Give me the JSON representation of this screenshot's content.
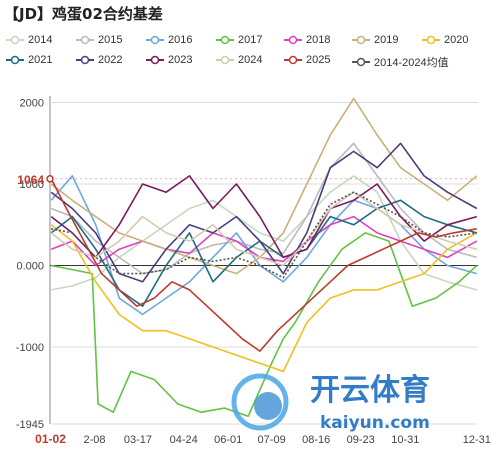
{
  "title": "【JD】鸡蛋02合约基差",
  "chart_data": {
    "type": "line",
    "title": "【JD】鸡蛋02合约基差",
    "ylim": [
      -1945,
      2080
    ],
    "y_ticks": [
      2000,
      1000,
      0,
      -1000,
      -1945
    ],
    "y_tick_labels": [
      "2000",
      "1000",
      "0.000",
      "-1000",
      "-1945"
    ],
    "current_marker": {
      "value": 1064,
      "label": "1064"
    },
    "x_tick_labels": [
      "01-02",
      "2-08",
      "03-17",
      "04-24",
      "06-01",
      "07-09",
      "08-16",
      "09-23",
      "10-31",
      "12-31"
    ],
    "x_ticks_day": [
      2,
      39,
      76,
      115,
      153,
      190,
      228,
      266,
      304,
      365
    ],
    "grid": "horizontal",
    "legend_position": "top",
    "series": [
      {
        "name": "2014",
        "color": "#c6d8c0",
        "dash": false,
        "x": [
          2,
          20,
          40,
          60,
          80,
          100,
          120,
          140,
          160,
          180,
          200,
          220,
          240,
          260,
          280,
          300,
          320,
          340,
          365
        ],
        "y": [
          -300,
          -250,
          -150,
          100,
          300,
          500,
          700,
          800,
          600,
          400,
          300,
          600,
          900,
          1100,
          900,
          300,
          -100,
          -200,
          -300
        ]
      },
      {
        "name": "2015",
        "color": "#bbbbbb",
        "dash": false,
        "x": [
          2,
          20,
          40,
          60,
          80,
          100,
          120,
          140,
          160,
          180,
          200,
          220,
          240,
          260,
          280,
          300,
          320,
          340,
          365
        ],
        "y": [
          700,
          600,
          300,
          100,
          -100,
          -50,
          150,
          250,
          300,
          200,
          150,
          600,
          1200,
          1500,
          1100,
          700,
          400,
          200,
          100
        ]
      },
      {
        "name": "2016",
        "color": "#6fa8dc",
        "dash": false,
        "x": [
          2,
          20,
          40,
          60,
          80,
          100,
          120,
          140,
          160,
          180,
          200,
          220,
          240,
          260,
          280,
          300,
          320,
          340,
          365
        ],
        "y": [
          800,
          1100,
          500,
          -400,
          -600,
          -400,
          -200,
          100,
          400,
          0,
          -200,
          100,
          500,
          800,
          700,
          500,
          200,
          0,
          -100
        ]
      },
      {
        "name": "2017",
        "color": "#62c343",
        "dash": false,
        "x": [
          2,
          20,
          37,
          42,
          55,
          70,
          90,
          110,
          130,
          150,
          170,
          190,
          200,
          210,
          230,
          250,
          270,
          290,
          310,
          330,
          350,
          365
        ],
        "y": [
          0,
          -50,
          -100,
          -1700,
          -1800,
          -1300,
          -1400,
          -1700,
          -1800,
          -1750,
          -1850,
          -1200,
          -900,
          -700,
          -200,
          200,
          400,
          300,
          -500,
          -400,
          -200,
          0
        ]
      },
      {
        "name": "2018",
        "color": "#e040c0",
        "dash": false,
        "x": [
          2,
          20,
          40,
          60,
          80,
          100,
          120,
          140,
          160,
          180,
          200,
          220,
          240,
          260,
          280,
          300,
          320,
          340,
          365
        ],
        "y": [
          200,
          300,
          0,
          200,
          300,
          200,
          150,
          400,
          300,
          100,
          50,
          300,
          500,
          600,
          400,
          300,
          200,
          100,
          300
        ]
      },
      {
        "name": "2019",
        "color": "#c9b17a",
        "dash": false,
        "x": [
          2,
          20,
          40,
          60,
          80,
          100,
          120,
          140,
          160,
          180,
          200,
          220,
          240,
          260,
          280,
          300,
          320,
          340,
          365
        ],
        "y": [
          1000,
          800,
          600,
          400,
          300,
          200,
          100,
          0,
          -100,
          100,
          400,
          1000,
          1600,
          2050,
          1600,
          1200,
          1000,
          800,
          1100
        ]
      },
      {
        "name": "2020",
        "color": "#f0c020",
        "dash": false,
        "x": [
          2,
          20,
          40,
          60,
          80,
          100,
          120,
          140,
          160,
          180,
          200,
          220,
          240,
          260,
          280,
          300,
          320,
          340,
          365
        ],
        "y": [
          500,
          300,
          -200,
          -600,
          -800,
          -800,
          -900,
          -1000,
          -1100,
          -1200,
          -1300,
          -700,
          -400,
          -300,
          -300,
          -200,
          -100,
          200,
          400
        ]
      },
      {
        "name": "2021",
        "color": "#1a6e80",
        "dash": false,
        "x": [
          2,
          20,
          40,
          60,
          80,
          100,
          120,
          140,
          160,
          180,
          200,
          220,
          240,
          260,
          280,
          300,
          320,
          340,
          365
        ],
        "y": [
          400,
          600,
          200,
          -300,
          -500,
          0,
          400,
          -200,
          100,
          300,
          100,
          200,
          600,
          500,
          700,
          800,
          600,
          500,
          400
        ]
      },
      {
        "name": "2022",
        "color": "#4a3d80",
        "dash": false,
        "x": [
          2,
          20,
          40,
          60,
          80,
          100,
          120,
          140,
          160,
          180,
          200,
          220,
          240,
          260,
          280,
          300,
          320,
          340,
          365
        ],
        "y": [
          900,
          700,
          400,
          -100,
          -200,
          200,
          500,
          400,
          600,
          300,
          -100,
          400,
          1200,
          1400,
          1200,
          1500,
          1100,
          900,
          700
        ]
      },
      {
        "name": "2023",
        "color": "#7b1b5a",
        "dash": false,
        "x": [
          2,
          20,
          40,
          60,
          80,
          100,
          120,
          140,
          160,
          180,
          200,
          220,
          240,
          260,
          280,
          300,
          320,
          340,
          365
        ],
        "y": [
          600,
          400,
          100,
          500,
          1000,
          900,
          1100,
          700,
          1000,
          600,
          100,
          200,
          700,
          800,
          1000,
          600,
          300,
          500,
          600
        ]
      },
      {
        "name": "2024",
        "color": "#d7c9b0",
        "dash": false,
        "x": [
          2,
          20,
          40,
          60,
          80,
          100,
          120,
          140,
          160,
          180,
          200,
          220,
          240,
          260,
          280,
          300,
          320,
          340,
          365
        ],
        "y": [
          400,
          200,
          100,
          300,
          600,
          400,
          300,
          500,
          200,
          100,
          0,
          300,
          700,
          900,
          700,
          500,
          400,
          300,
          200
        ]
      },
      {
        "name": "2025",
        "color": "#c0392b",
        "dash": false,
        "x": [
          2,
          15,
          30,
          45,
          60,
          75,
          90,
          105,
          120,
          135,
          150,
          165,
          180,
          195,
          210,
          225,
          240,
          255,
          270,
          285,
          300,
          315,
          330,
          345,
          365
        ],
        "y": [
          1064,
          700,
          300,
          -100,
          -300,
          -500,
          -400,
          -200,
          -300,
          -500,
          -700,
          -900,
          -1050,
          -800,
          -600,
          -400,
          -200,
          0,
          100,
          200,
          300,
          400,
          350,
          400,
          450
        ]
      },
      {
        "name": "2014-2024均值",
        "color": "#555555",
        "dash": true,
        "x": [
          2,
          20,
          40,
          60,
          80,
          100,
          120,
          140,
          160,
          180,
          200,
          220,
          240,
          260,
          280,
          300,
          320,
          340,
          365
        ],
        "y": [
          450,
          400,
          100,
          -100,
          -100,
          -50,
          100,
          50,
          100,
          0,
          -150,
          300,
          750,
          900,
          750,
          600,
          400,
          350,
          400
        ]
      }
    ]
  }
}
